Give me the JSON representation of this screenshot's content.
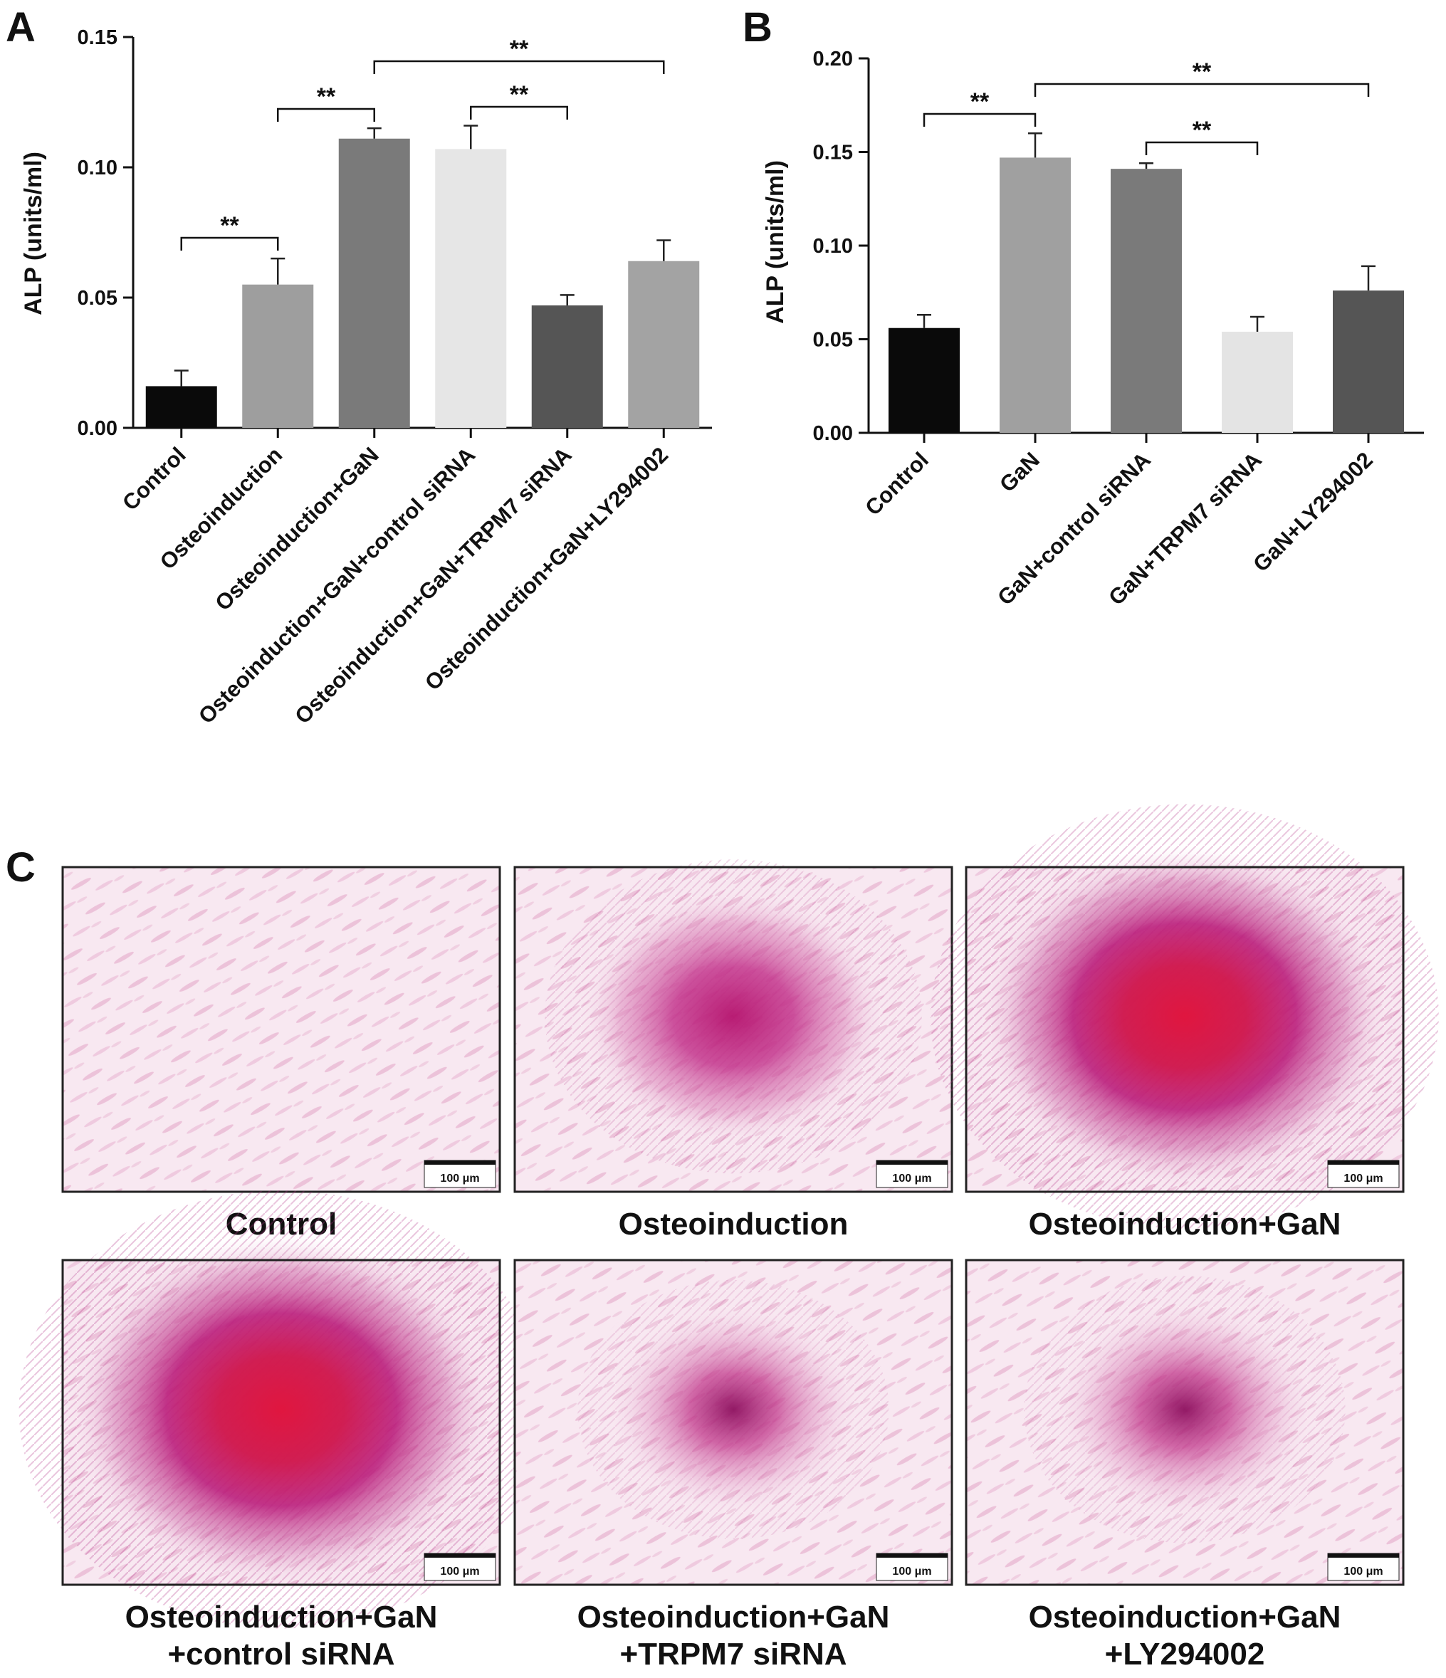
{
  "panels": {
    "A": "A",
    "B": "B",
    "C": "C"
  },
  "chart_data": [
    {
      "id": "A",
      "type": "bar",
      "ylabel": "ALP (units/ml)",
      "ylim": [
        0,
        0.15
      ],
      "yticks": [
        "0.00",
        "0.05",
        "0.10",
        "0.15"
      ],
      "ytick_values": [
        0,
        0.05,
        0.1,
        0.15
      ],
      "categories": [
        "Control",
        "Osteoinduction",
        "Osteoinduction+GaN",
        "Osteoinduction+GaN+control siRNA",
        "Osteoinduction+GaN+TRPM7 siRNA",
        "Osteoinduction+GaN+LY294002"
      ],
      "values": [
        0.016,
        0.055,
        0.111,
        0.107,
        0.047,
        0.064
      ],
      "errors": [
        0.006,
        0.01,
        0.004,
        0.009,
        0.004,
        0.008
      ],
      "colors": [
        "#0a0a0a",
        "#9e9e9e",
        "#7a7a7a",
        "#e6e6e6",
        "#555555",
        "#a3a3a3"
      ],
      "significance": [
        {
          "from": 0,
          "to": 1,
          "label": "**"
        },
        {
          "from": 1,
          "to": 2,
          "label": "**"
        },
        {
          "from": 3,
          "to": 4,
          "label": "**"
        },
        {
          "from": 2,
          "to": 5,
          "label": "**"
        }
      ]
    },
    {
      "id": "B",
      "type": "bar",
      "ylabel": "ALP (units/ml)",
      "ylim": [
        0,
        0.2
      ],
      "yticks": [
        "0.00",
        "0.05",
        "0.10",
        "0.15",
        "0.20"
      ],
      "ytick_values": [
        0,
        0.05,
        0.1,
        0.15,
        0.2
      ],
      "categories": [
        "Control",
        "GaN",
        "GaN+control siRNA",
        "GaN+TRPM7 siRNA",
        "GaN+LY294002"
      ],
      "values": [
        0.056,
        0.147,
        0.141,
        0.054,
        0.076
      ],
      "errors": [
        0.007,
        0.013,
        0.003,
        0.008,
        0.013
      ],
      "colors": [
        "#0a0a0a",
        "#a0a0a0",
        "#7a7a7a",
        "#e4e4e4",
        "#555555"
      ],
      "significance": [
        {
          "from": 0,
          "to": 1,
          "label": "**"
        },
        {
          "from": 1,
          "to": 4,
          "label": "**"
        },
        {
          "from": 2,
          "to": 3,
          "label": "**"
        }
      ]
    }
  ],
  "micrographs": [
    {
      "caption": [
        "Control"
      ],
      "intensity": 0.0,
      "scale": "100 μm"
    },
    {
      "caption": [
        "Osteoinduction"
      ],
      "intensity": 0.55,
      "scale": "100 μm"
    },
    {
      "caption": [
        "Osteoinduction+GaN"
      ],
      "intensity": 0.95,
      "scale": "100 μm"
    },
    {
      "caption": [
        "Osteoinduction+GaN",
        "+control siRNA"
      ],
      "intensity": 1.0,
      "scale": "100 μm"
    },
    {
      "caption": [
        "Osteoinduction+GaN",
        "+TRPM7 siRNA"
      ],
      "intensity": 0.35,
      "scale": "100 μm"
    },
    {
      "caption": [
        "Osteoinduction+GaN",
        "+LY294002"
      ],
      "intensity": 0.38,
      "scale": "100 μm"
    }
  ],
  "colors": {
    "stain_light": "#f6e3ee",
    "stain_mid": "#cc3f95",
    "stain_dark": "#a0106a",
    "stain_core": "#d8154a"
  }
}
